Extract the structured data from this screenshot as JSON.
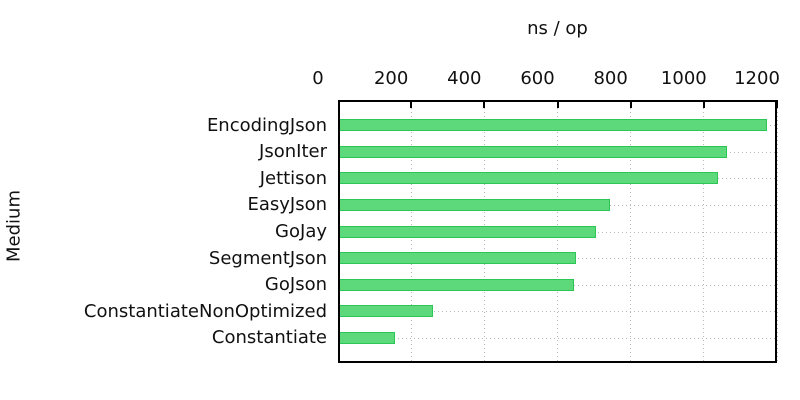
{
  "chart_data": {
    "type": "bar",
    "orientation": "horizontal",
    "title": "ns / op",
    "ylabel": "Medium",
    "xlim": [
      0,
      1200
    ],
    "xticks": [
      "0",
      "200",
      "400",
      "600",
      "800",
      "1000",
      "1200"
    ],
    "grid": "dotted",
    "legend_position": "none",
    "categories": [
      "EncodingJson",
      "JsonIter",
      "Jettison",
      "EasyJson",
      "GoJay",
      "SegmentJson",
      "GoJson",
      "ConstantiateNonOptimized",
      "Constantiate"
    ],
    "values": [
      1172,
      1063,
      1040,
      744,
      704,
      650,
      646,
      261,
      157
    ],
    "colors": {
      "bar_fill": "#5dd87b",
      "bar_border": "#2bc655",
      "grid": "#b9b9b9",
      "axis": "#000000",
      "text": "#111111"
    }
  }
}
